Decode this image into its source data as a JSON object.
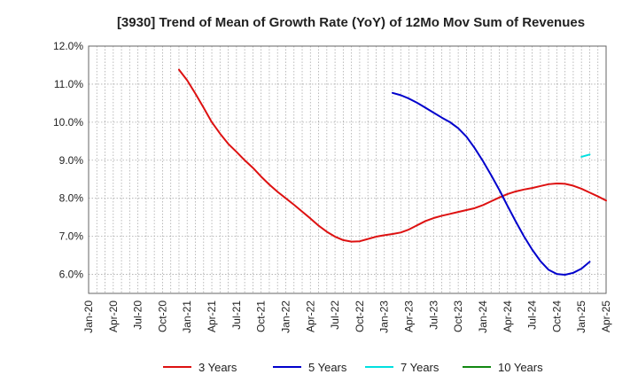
{
  "chart_data": {
    "type": "line",
    "title": "[3930]  Trend of Mean of Growth Rate (YoY) of 12Mo Mov Sum of Revenues",
    "xlabel": "",
    "ylabel": "",
    "ylim": [
      5.5,
      12.0
    ],
    "y_ticks": [
      6.0,
      7.0,
      8.0,
      9.0,
      10.0,
      11.0,
      12.0
    ],
    "y_tick_labels": [
      "6.0%",
      "7.0%",
      "8.0%",
      "9.0%",
      "10.0%",
      "11.0%",
      "12.0%"
    ],
    "x_tick_labels": [
      "Jan-20",
      "Apr-20",
      "Jul-20",
      "Oct-20",
      "Jan-21",
      "Apr-21",
      "Jul-21",
      "Oct-21",
      "Jan-22",
      "Apr-22",
      "Jul-22",
      "Oct-22",
      "Jan-23",
      "Apr-23",
      "Jul-23",
      "Oct-23",
      "Jan-24",
      "Apr-24",
      "Jul-24",
      "Oct-24",
      "Jan-25",
      "Apr-25"
    ],
    "x_min_index": 0,
    "x_max_index": 63,
    "grid": true,
    "legend_position": "bottom",
    "series": [
      {
        "name": "3 Years",
        "color": "#dd1111",
        "start_index": 11,
        "values": [
          11.38,
          11.1,
          10.75,
          10.38,
          10.0,
          9.7,
          9.43,
          9.22,
          9.0,
          8.8,
          8.57,
          8.36,
          8.17,
          8.0,
          7.83,
          7.65,
          7.47,
          7.28,
          7.12,
          6.99,
          6.9,
          6.86,
          6.87,
          6.93,
          6.99,
          7.03,
          7.06,
          7.1,
          7.18,
          7.29,
          7.4,
          7.48,
          7.54,
          7.59,
          7.64,
          7.69,
          7.74,
          7.82,
          7.92,
          8.02,
          8.11,
          8.18,
          8.23,
          8.27,
          8.32,
          8.37,
          8.39,
          8.38,
          8.33,
          8.25,
          8.15,
          8.05,
          7.94
        ]
      },
      {
        "name": "5 Years",
        "color": "#0000cc",
        "start_index": 37,
        "values": [
          10.77,
          10.71,
          10.62,
          10.51,
          10.38,
          10.25,
          10.12,
          10.0,
          9.84,
          9.62,
          9.32,
          8.98,
          8.61,
          8.22,
          7.8,
          7.39,
          7.0,
          6.65,
          6.35,
          6.12,
          6.01,
          5.99,
          6.04,
          6.15,
          6.33
        ]
      },
      {
        "name": "7 Years",
        "color": "#00e0e0",
        "start_index": 60,
        "values": [
          9.09,
          9.15
        ]
      },
      {
        "name": "10 Years",
        "color": "#118811",
        "start_index": 0,
        "values": []
      }
    ]
  }
}
